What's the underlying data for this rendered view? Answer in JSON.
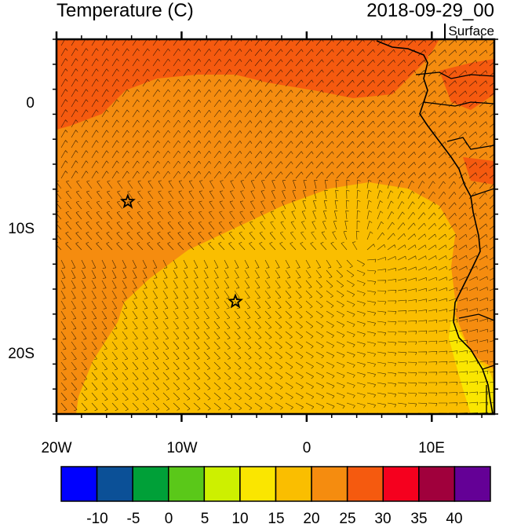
{
  "header": {
    "title": "Temperature (C)",
    "datetime": "2018-09-29_00",
    "level": "Surface"
  },
  "map": {
    "x_ticks": [
      "20W",
      "10W",
      "0",
      "10E"
    ],
    "y_ticks": [
      "0",
      "10S",
      "20S"
    ],
    "lon_range": [
      -20,
      15
    ],
    "lat_range": [
      -25,
      5
    ],
    "markers": [
      {
        "name": "star-marker-1",
        "lon": -14.3,
        "lat": -8.0
      },
      {
        "name": "star-marker-2",
        "lon": -5.7,
        "lat": -16.0
      }
    ]
  },
  "colorbar": {
    "labels": [
      "-10",
      "-5",
      "0",
      "5",
      "10",
      "15",
      "20",
      "25",
      "30",
      "35",
      "40"
    ],
    "colors": [
      "#0000ff",
      "#0b5097",
      "#00a038",
      "#5ac819",
      "#cdf000",
      "#fae600",
      "#fabe00",
      "#f58c0f",
      "#f55a0f",
      "#f5001e",
      "#a0003c",
      "#640096"
    ]
  },
  "field_colors": {
    "band_20_25": "#f58c0f",
    "band_15_20": "#fabe00",
    "band_25_30": "#f55a0f",
    "band_10_15": "#fae600"
  }
}
